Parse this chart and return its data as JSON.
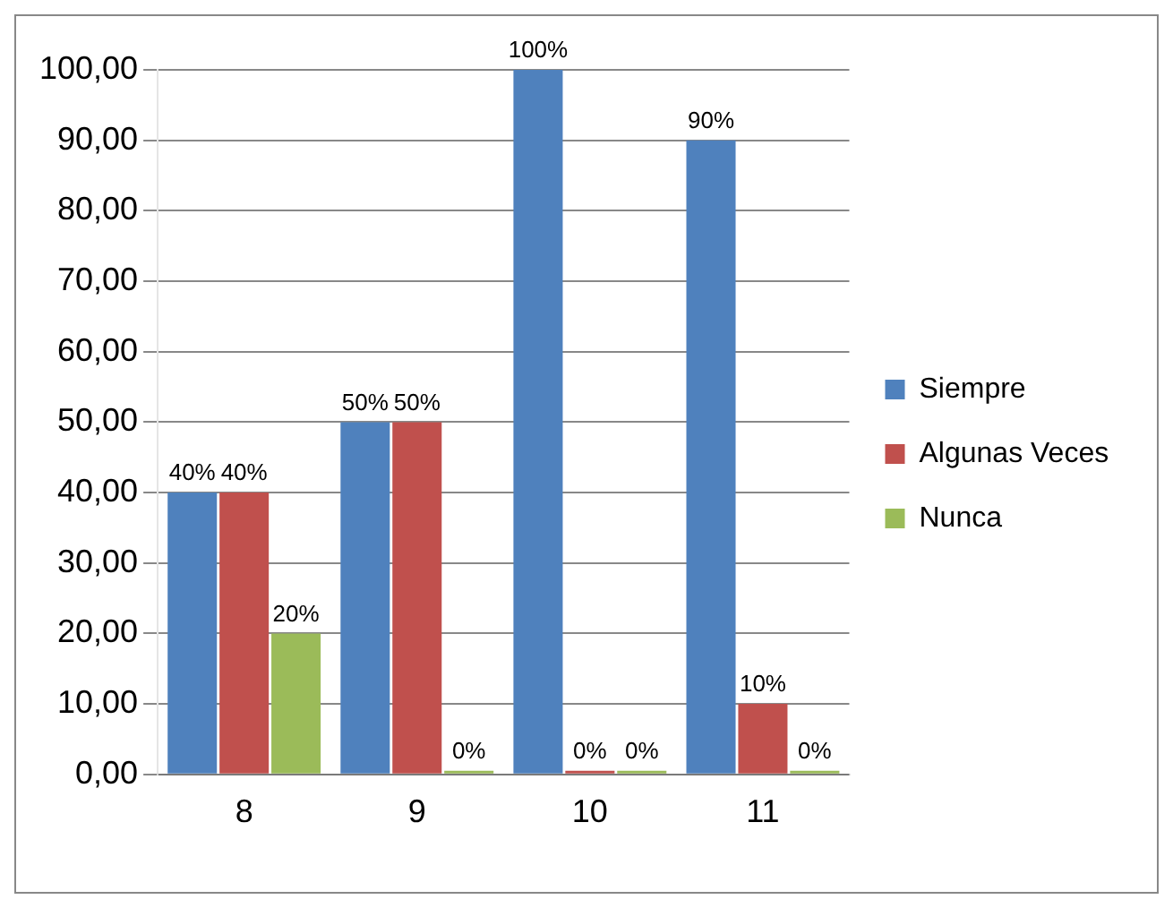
{
  "chart_data": {
    "type": "bar",
    "categories": [
      "8",
      "9",
      "10",
      "11"
    ],
    "series": [
      {
        "name": "Siempre",
        "color": "#4f81bd",
        "values": [
          40,
          50,
          100,
          90
        ],
        "value_labels": [
          "40%",
          "50%",
          "100%",
          "90%"
        ]
      },
      {
        "name": "Algunas Veces",
        "color": "#c0504d",
        "values": [
          40,
          50,
          0,
          10
        ],
        "value_labels": [
          "40%",
          "50%",
          "0%",
          "10%"
        ]
      },
      {
        "name": "Nunca",
        "color": "#9bbb59",
        "values": [
          20,
          0,
          0,
          0
        ],
        "value_labels": [
          "20%",
          "0%",
          "0%",
          "0%"
        ]
      }
    ],
    "ylim": [
      0,
      100
    ],
    "yticks": [
      {
        "value": 0,
        "label": "0,00"
      },
      {
        "value": 10,
        "label": "10,00"
      },
      {
        "value": 20,
        "label": "20,00"
      },
      {
        "value": 30,
        "label": "30,00"
      },
      {
        "value": 40,
        "label": "40,00"
      },
      {
        "value": 50,
        "label": "50,00"
      },
      {
        "value": 60,
        "label": "60,00"
      },
      {
        "value": 70,
        "label": "70,00"
      },
      {
        "value": 80,
        "label": "80,00"
      },
      {
        "value": 90,
        "label": "90,00"
      },
      {
        "value": 100,
        "label": "100,00"
      }
    ],
    "grid": "y",
    "legend": "right"
  }
}
